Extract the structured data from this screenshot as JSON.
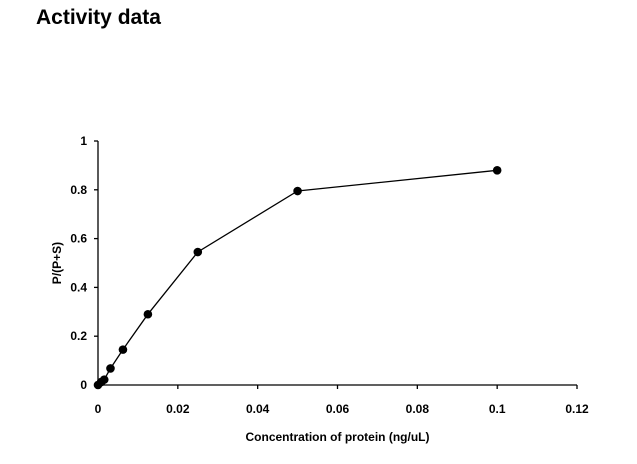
{
  "page": {
    "title": "Activity data"
  },
  "chart_data": {
    "type": "line",
    "title": "",
    "xlabel": "Concentration of protein (ng/uL)",
    "ylabel": "P/(P+S)",
    "xlim": [
      0,
      0.12
    ],
    "ylim": [
      0,
      1
    ],
    "x_ticks": [
      "0",
      "0.02",
      "0.04",
      "0.06",
      "0.08",
      "0.1",
      "0.12"
    ],
    "y_ticks": [
      "0",
      "0.2",
      "0.4",
      "0.6",
      "0.8",
      "1"
    ],
    "grid": false,
    "legend": "none",
    "marker": "filled-circle",
    "line_color": "#000000",
    "series": [
      {
        "x": [
          0,
          0.00078,
          0.00156,
          0.003125,
          0.00625,
          0.0125,
          0.025,
          0.05,
          0.1
        ],
        "y": [
          0,
          0.012,
          0.022,
          0.068,
          0.145,
          0.29,
          0.545,
          0.795,
          0.88
        ]
      }
    ]
  }
}
